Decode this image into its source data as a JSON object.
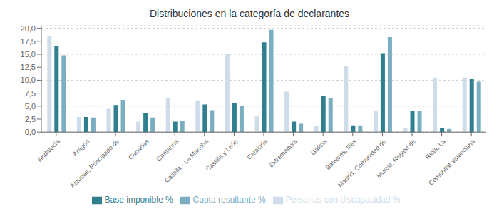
{
  "chart_data": {
    "type": "bar",
    "title": "Distribuciones en la categoría de declarantes",
    "categories": [
      "Andalucía",
      "Aragón",
      "Asturias, Principado de",
      "Canarias",
      "Cantabria",
      "Castilla - La Mancha",
      "Castilla y León",
      "Cataluña",
      "Extremadura",
      "Galicia",
      "Baleares, Illes",
      "Madrid, Comunidad de",
      "Murcia, Región de",
      "Rioja, La",
      "Comunitat Valenciana"
    ],
    "series": [
      {
        "name": "Personas con discapacidad %",
        "color": "#cfdce9",
        "values": [
          18.5,
          2.9,
          4.5,
          2.0,
          6.5,
          6.1,
          15.1,
          3.0,
          7.8,
          1.2,
          12.8,
          4.1,
          0.7,
          10.5,
          10.5
        ]
      },
      {
        "name": "Base imponible %",
        "color": "#2e7f8f",
        "values": [
          16.6,
          2.9,
          5.2,
          3.7,
          2.0,
          5.3,
          5.6,
          17.3,
          2.0,
          7.0,
          1.3,
          15.2,
          4.0,
          0.7,
          10.2
        ]
      },
      {
        "name": "Cuota resultante %",
        "color": "#7aaec0",
        "values": [
          14.8,
          2.8,
          6.2,
          2.8,
          2.2,
          4.2,
          5.0,
          19.7,
          1.6,
          6.5,
          1.3,
          18.3,
          4.1,
          0.6,
          9.7
        ]
      }
    ],
    "ylim": [
      0,
      20.5
    ],
    "yticks": [
      {
        "value": 0,
        "label": "0,0"
      },
      {
        "value": 2.5,
        "label": "2,5"
      },
      {
        "value": 5.0,
        "label": "5,0"
      },
      {
        "value": 7.5,
        "label": "7,5"
      },
      {
        "value": 10.0,
        "label": "10,0"
      },
      {
        "value": 12.5,
        "label": "12,5"
      },
      {
        "value": 15.0,
        "label": "15,0"
      },
      {
        "value": 17.5,
        "label": "17,5"
      },
      {
        "value": 20.0,
        "label": "20,0"
      }
    ],
    "grid": true,
    "legend": "bottom"
  }
}
